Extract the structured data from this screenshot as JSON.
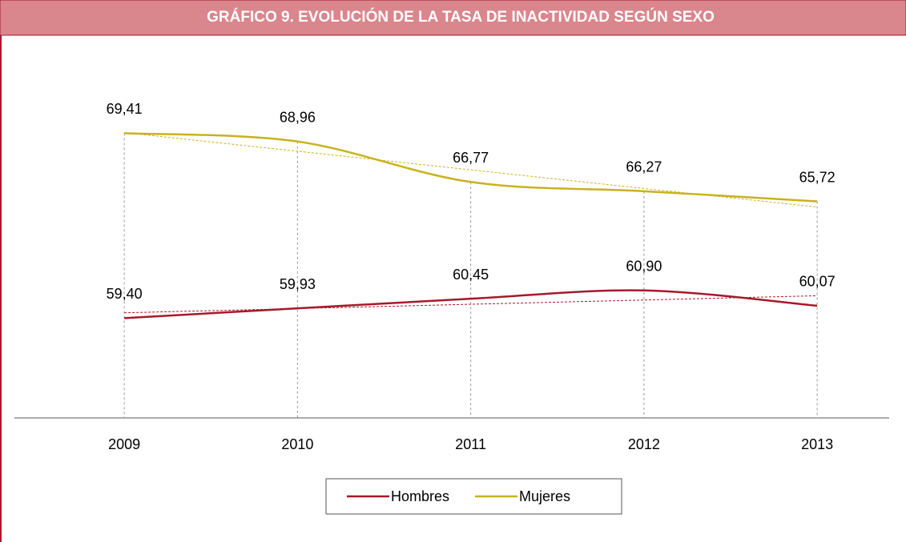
{
  "chart_data": {
    "type": "line",
    "title": "GRÁFICO  9. EVOLUCIÓN DE LA TASA DE INACTIVIDAD SEGÚN SEXO",
    "categories": [
      "2009",
      "2010",
      "2011",
      "2012",
      "2013"
    ],
    "series": [
      {
        "name": "Hombres",
        "color": "#a8182a",
        "values": [
          59.4,
          59.93,
          60.45,
          60.9,
          60.07
        ],
        "value_labels": [
          "59,40",
          "59,93",
          "60,45",
          "60,90",
          "60,07"
        ]
      },
      {
        "name": "Mujeres",
        "color": "#c8b21e",
        "values": [
          69.41,
          68.96,
          66.77,
          66.27,
          65.72
        ],
        "value_labels": [
          "69,41",
          "68,96",
          "66,77",
          "66,27",
          "65,72"
        ]
      }
    ],
    "ylim": [
      54,
      73
    ],
    "smooth": true,
    "trendline": true,
    "drop_lines": true,
    "legend": "bottom"
  }
}
